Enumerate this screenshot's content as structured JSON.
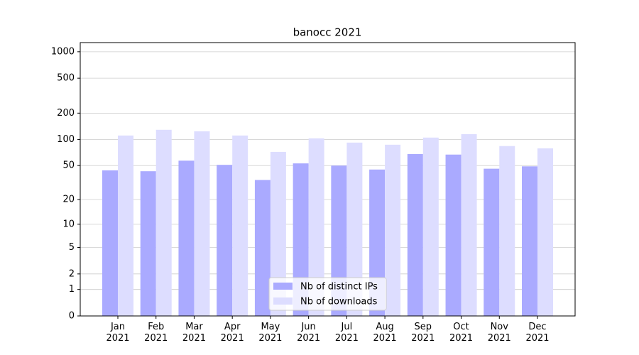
{
  "chart_data": {
    "type": "bar",
    "title": "banocc 2021",
    "categories": [
      "Jan\n2021",
      "Feb\n2021",
      "Mar\n2021",
      "Apr\n2021",
      "May\n2021",
      "Jun\n2021",
      "Jul\n2021",
      "Aug\n2021",
      "Sep\n2021",
      "Oct\n2021",
      "Nov\n2021",
      "Dec\n2021"
    ],
    "series": [
      {
        "name": "Nb of distinct IPs",
        "color": "#aaaaff",
        "values": [
          44,
          43,
          57,
          51,
          34,
          53,
          50,
          45,
          68,
          67,
          46,
          49
        ]
      },
      {
        "name": "Nb of downloads",
        "color": "#ddddff",
        "values": [
          111,
          129,
          124,
          111,
          72,
          103,
          92,
          87,
          105,
          115,
          84,
          79
        ]
      }
    ],
    "yscale": "log1p",
    "ylim": [
      0,
      1270
    ],
    "yticks": [
      0,
      1,
      2,
      5,
      10,
      20,
      50,
      100,
      200,
      500,
      1000
    ],
    "grid": true,
    "legend": "lower center"
  }
}
